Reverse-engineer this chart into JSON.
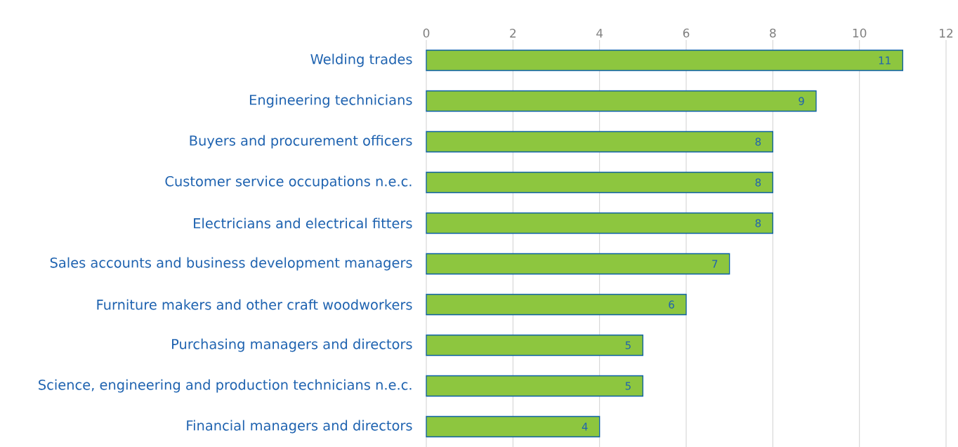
{
  "chart_data": {
    "type": "bar",
    "orientation": "horizontal",
    "categories": [
      "Welding trades",
      "Engineering technicians",
      "Buyers and procurement officers",
      "Customer service occupations n.e.c.",
      "Electricians and electrical fitters",
      "Sales accounts and business development managers",
      "Furniture makers and other craft woodworkers",
      "Purchasing managers and directors",
      "Science, engineering and production technicians n.e.c.",
      "Financial managers and directors"
    ],
    "values": [
      11,
      9,
      8,
      8,
      8,
      7,
      6,
      5,
      5,
      4
    ],
    "color": "#8dc63f",
    "xlim": [
      0,
      12
    ],
    "xticks": [
      0,
      2,
      4,
      6,
      8,
      10,
      12
    ],
    "grid": "x",
    "data_labels": true
  }
}
